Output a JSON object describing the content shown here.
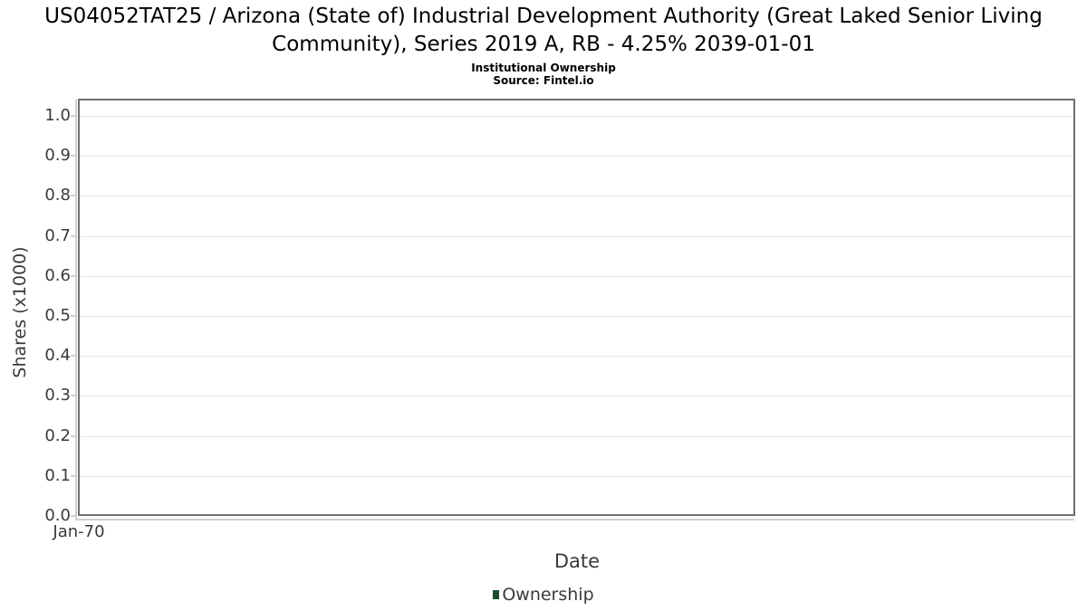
{
  "colors": {
    "background": "#ffffff",
    "title_text": "#000000",
    "axis_text": "#3a3a3a",
    "plot_border": "#6e6e6e",
    "axis_line": "#cfcfcf",
    "gridline": "#e8e8e8",
    "legend_ownership": "#1b4d30"
  },
  "chart_data": {
    "type": "line",
    "title": "US04052TAT25 / Arizona (State of) Industrial Development Authority (Great Laked Senior Living Community), Series 2019 A, RB - 4.25% 2039-01-01",
    "subtitle": "Institutional Ownership",
    "source": "Source: Fintel.io",
    "xlabel": "Date",
    "ylabel": "Shares (x1000)",
    "x_ticks": [
      "Jan-70"
    ],
    "y_ticks": [
      "0.0",
      "0.1",
      "0.2",
      "0.3",
      "0.4",
      "0.5",
      "0.6",
      "0.7",
      "0.8",
      "0.9",
      "1.0"
    ],
    "ylim": [
      0.0,
      1.04
    ],
    "grid": true,
    "legend": {
      "position": "bottom-center",
      "entries": [
        {
          "label": "Ownership",
          "color": "#1b4d30"
        }
      ]
    },
    "series": [
      {
        "name": "Ownership",
        "x": [],
        "values": []
      }
    ]
  }
}
